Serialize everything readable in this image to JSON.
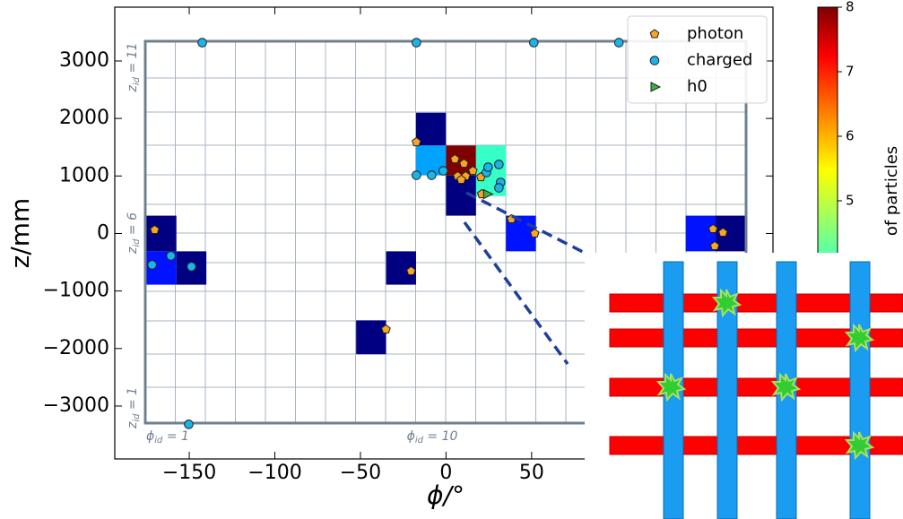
{
  "chart_data": {
    "type": "scatter",
    "xlabel": "ϕ/°",
    "ylabel": "z/mm",
    "xlim": [
      -193.5,
      191
    ],
    "ylim": [
      -3920,
      3935
    ],
    "xticks": [
      {
        "value": -150,
        "label": "−150"
      },
      {
        "value": -100,
        "label": "−100"
      },
      {
        "value": -50,
        "label": "−50"
      },
      0,
      50
    ],
    "yticks": [
      {
        "value": -3000,
        "label": "−3000"
      },
      {
        "value": -2000,
        "label": "−2000"
      },
      {
        "value": -1000,
        "label": "−1000"
      },
      0,
      1000,
      2000,
      3000
    ],
    "legend": "upper right",
    "annotations": [
      "z_id = 11",
      "z_id = 6",
      "z_id = 1",
      "ϕ_id = 1",
      "ϕ_id = 10"
    ],
    "colorbar": {
      "label": "of particles",
      "lim": [
        1,
        8
      ],
      "ticks": [
        5,
        6,
        7,
        8
      ],
      "colormap": "jet"
    },
    "cells": [
      {
        "phi": [
          -17.5,
          0
        ],
        "z": [
          1530,
          2100
        ],
        "count": 1
      },
      {
        "phi": [
          -17.5,
          0
        ],
        "z": [
          1010,
          1530
        ],
        "count": 3
      },
      {
        "phi": [
          0,
          17.5
        ],
        "z": [
          1010,
          1530
        ],
        "count": 8
      },
      {
        "phi": [
          17.5,
          35
        ],
        "z": [
          650,
          1530
        ],
        "count": 4
      },
      {
        "phi": [
          0,
          17.5
        ],
        "z": [
          310,
          1010
        ],
        "count": 1
      },
      {
        "phi": [
          35,
          52.5
        ],
        "z": [
          -310,
          310
        ],
        "count": 2
      },
      {
        "phi": [
          -175,
          -157.5
        ],
        "z": [
          -310,
          310
        ],
        "count": 1
      },
      {
        "phi": [
          -175,
          -157.5
        ],
        "z": [
          -890,
          -310
        ],
        "count": 2
      },
      {
        "phi": [
          -157.5,
          -140
        ],
        "z": [
          -890,
          -310
        ],
        "count": 1
      },
      {
        "phi": [
          -35,
          -17.5
        ],
        "z": [
          -890,
          -310
        ],
        "count": 1
      },
      {
        "phi": [
          -52.5,
          -35
        ],
        "z": [
          -2100,
          -1510
        ],
        "count": 1
      },
      {
        "phi": [
          140,
          157.5
        ],
        "z": [
          -310,
          310
        ],
        "count": 2
      },
      {
        "phi": [
          157.5,
          175
        ],
        "z": [
          -310,
          310
        ],
        "count": 1
      }
    ],
    "series": [
      {
        "name": "photon",
        "color": "#f5a623",
        "marker": "pentagon",
        "x": [
          -170.2,
          -17.3,
          5.2,
          10.5,
          15.7,
          11.5,
          6.8,
          8.9,
          20.4,
          20.9,
          38.2,
          51.8,
          -20.4,
          -35.1,
          156,
          157,
          161.8
        ],
        "values": [
          62,
          1589,
          1293,
          1215,
          1090,
          997,
          997,
          935,
          981,
          685,
          249,
          0,
          -654,
          -1667,
          78,
          -218,
          16
        ]
      },
      {
        "name": "charged",
        "color": "#1ab4e8",
        "marker": "circle",
        "x": [
          -142.4,
          -17.3,
          51.3,
          101,
          -150.3,
          -171.7,
          -160.7,
          -148.7,
          -17.3,
          -8.4,
          -1.6,
          23.6,
          24.6,
          30.9,
          31.9,
          30.9
        ],
        "values": [
          3318,
          3318,
          3318,
          3318,
          -3318,
          -545,
          -389,
          -576,
          1012,
          1012,
          1090,
          1060,
          1153,
          1200,
          888,
          794
        ]
      },
      {
        "name": "h0",
        "color": "#3cb043",
        "marker": "triangle",
        "x": [
          24.1
        ],
        "values": [
          685
        ]
      }
    ]
  }
}
